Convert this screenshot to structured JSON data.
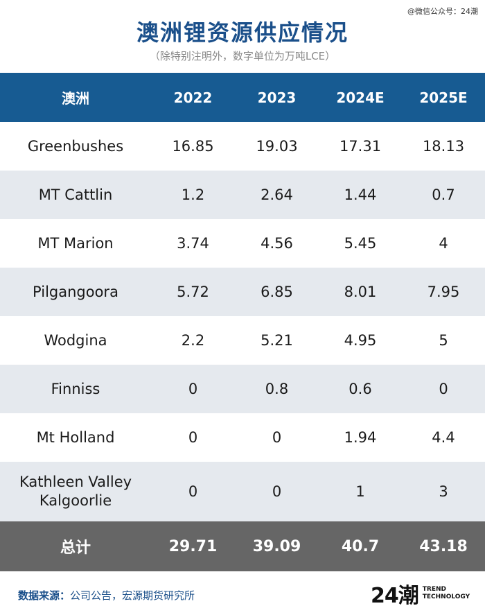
{
  "watermark": "@微信公众号：24潮",
  "title": "澳洲锂资源供应情况",
  "subtitle": "（除特别注明外，数字单位为万吨LCE）",
  "table": {
    "headers": [
      "澳洲",
      "2022",
      "2023",
      "2024E",
      "2025E"
    ],
    "rows": [
      {
        "name": "Greenbushes",
        "values": [
          "16.85",
          "19.03",
          "17.31",
          "18.13"
        ]
      },
      {
        "name": "MT Cattlin",
        "values": [
          "1.2",
          "2.64",
          "1.44",
          "0.7"
        ]
      },
      {
        "name": "MT Marion",
        "values": [
          "3.74",
          "4.56",
          "5.45",
          "4"
        ]
      },
      {
        "name": "Pilgangoora",
        "values": [
          "5.72",
          "6.85",
          "8.01",
          "7.95"
        ]
      },
      {
        "name": "Wodgina",
        "values": [
          "2.2",
          "5.21",
          "4.95",
          "5"
        ]
      },
      {
        "name": "Finniss",
        "values": [
          "0",
          "0.8",
          "0.6",
          "0"
        ]
      },
      {
        "name": "Mt Holland",
        "values": [
          "0",
          "0",
          "1.94",
          "4.4"
        ]
      },
      {
        "name_line1": "Kathleen Valley",
        "name_line2": "Kalgoorlie",
        "values": [
          "0",
          "0",
          "1",
          "3"
        ]
      }
    ],
    "total": {
      "label": "总计",
      "values": [
        "29.71",
        "39.09",
        "40.7",
        "43.18"
      ]
    }
  },
  "source": {
    "label": "数据来源：",
    "text": "公司公告，宏源期货研究所"
  },
  "logo": {
    "mark": "24潮",
    "line1": "TREND",
    "line2": "TECHNOLOGY"
  },
  "colors": {
    "header_bg": "#175b92",
    "title": "#1a4f8a",
    "stripe": "#e5e9ee",
    "total_bg": "#666666"
  }
}
